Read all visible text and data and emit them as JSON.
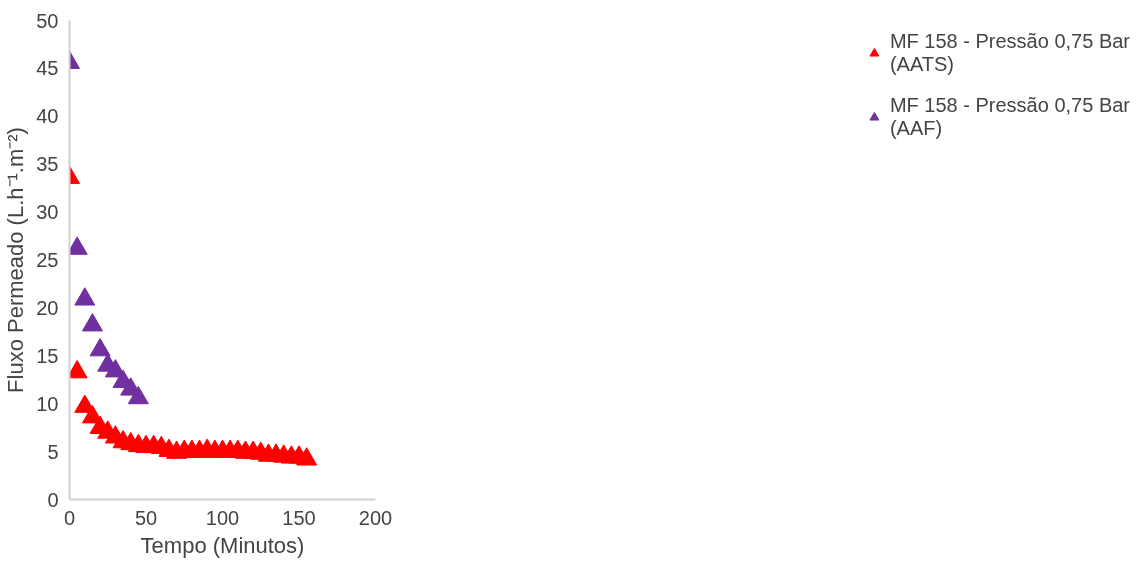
{
  "chart_data": {
    "type": "scatter",
    "xlabel": "Tempo (Minutos)",
    "ylabel": "Fluxo Permeado (L.h⁻¹.m⁻²)",
    "xlim": [
      0,
      200
    ],
    "xticks": [
      0,
      50,
      100,
      150,
      200
    ],
    "ylim": [
      0,
      50
    ],
    "yticks": [
      0,
      5,
      10,
      15,
      20,
      25,
      30,
      35,
      40,
      45,
      50
    ],
    "grid": false,
    "legend": "right",
    "marker": "triangle",
    "series": [
      {
        "name": "MF 158 - Pressão 0,75 Bar (AATS)",
        "color": "#ff0000",
        "x": [
          0,
          5,
          10,
          15,
          20,
          25,
          30,
          35,
          40,
          45,
          50,
          55,
          60,
          65,
          70,
          75,
          80,
          85,
          90,
          95,
          100,
          105,
          110,
          115,
          120,
          125,
          130,
          135,
          140,
          145,
          150,
          155
        ],
        "values": [
          33.6,
          13.3,
          9.7,
          8.6,
          7.5,
          7.0,
          6.5,
          6.0,
          5.8,
          5.6,
          5.5,
          5.5,
          5.4,
          5.1,
          4.9,
          5.0,
          5.0,
          5.0,
          5.1,
          5.0,
          5.0,
          5.0,
          5.0,
          4.9,
          4.9,
          4.8,
          4.6,
          4.6,
          4.5,
          4.4,
          4.4,
          4.2
        ]
      },
      {
        "name": "MF 158 - Pressão 0,75 Bar (AAF)",
        "color": "#7030a0",
        "x": [
          0,
          5,
          10,
          15,
          20,
          25,
          30,
          35,
          40,
          45
        ],
        "values": [
          45.6,
          26.2,
          20.9,
          18.2,
          15.6,
          14.0,
          13.4,
          12.3,
          11.5,
          10.6
        ]
      }
    ]
  }
}
